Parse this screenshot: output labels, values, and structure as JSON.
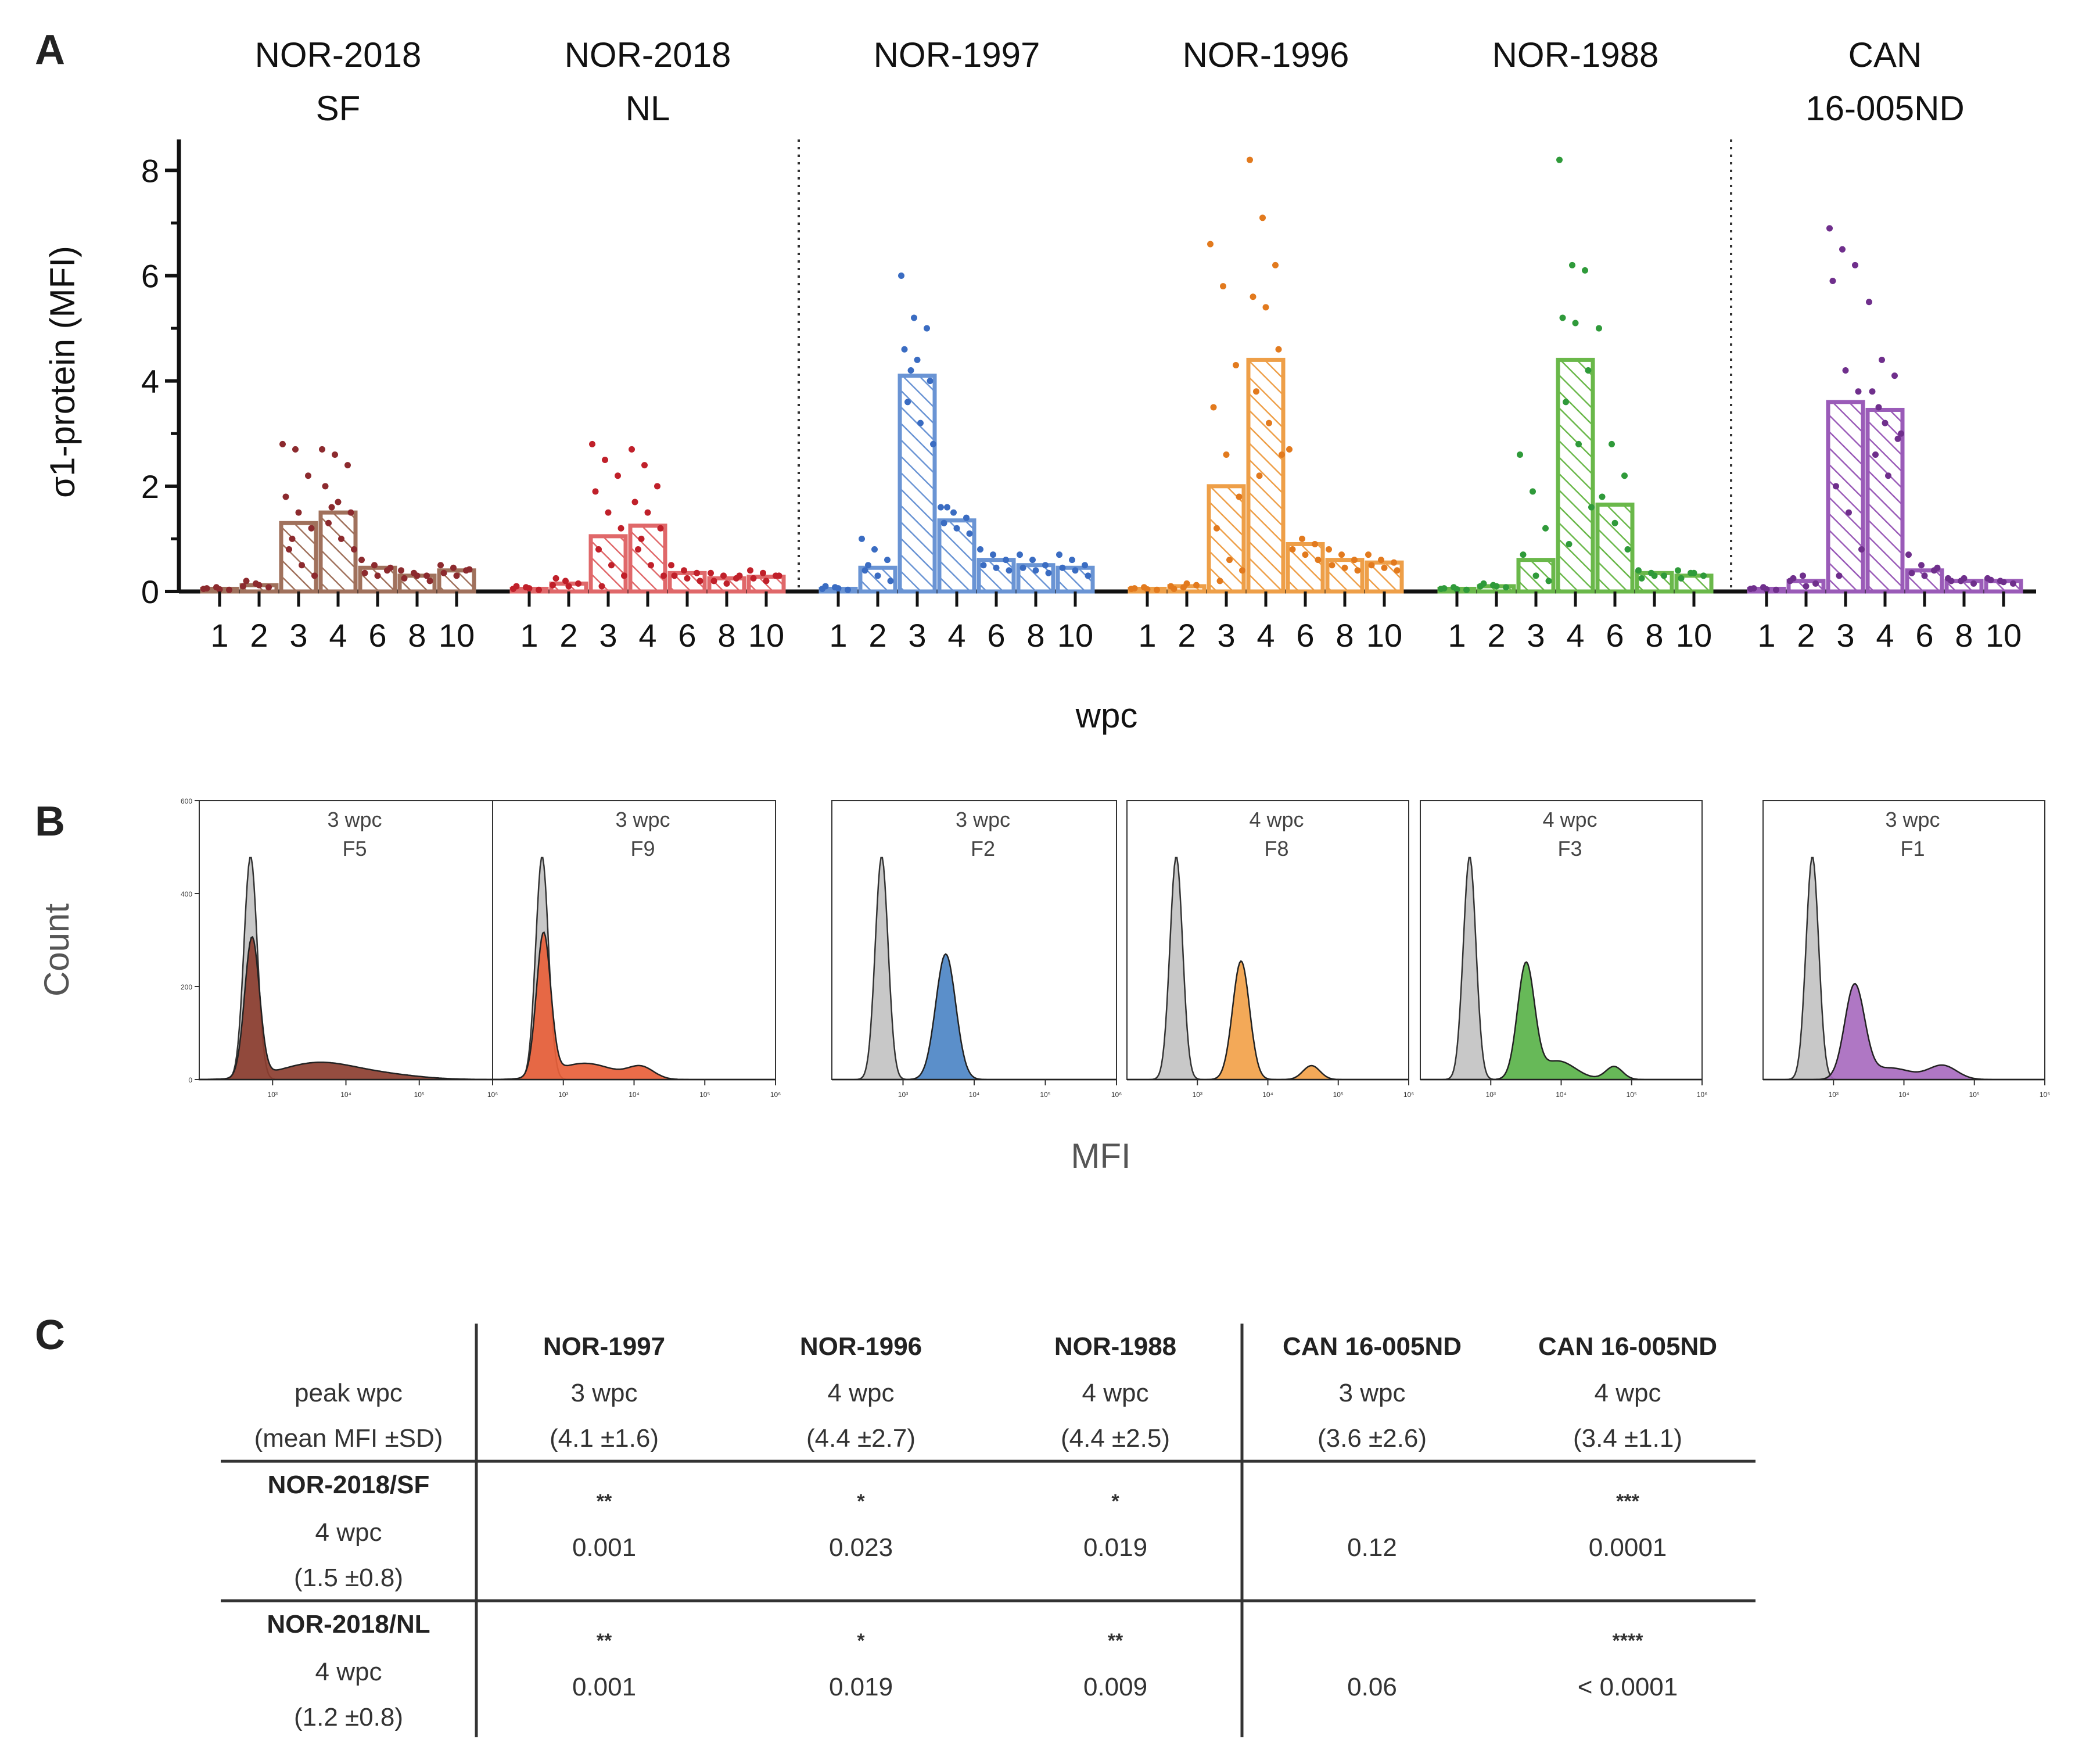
{
  "panels": {
    "a": "A",
    "b": "B",
    "c": "C"
  },
  "chart_data": [
    {
      "type": "bar",
      "title": "",
      "ylabel": "σ1-protein (MFI)",
      "xlabel": "wpc",
      "ylim": [
        0,
        8.5
      ],
      "yticks": [
        "0",
        "2",
        "4",
        "6",
        "8"
      ],
      "categories": [
        "1",
        "2",
        "3",
        "4",
        "6",
        "8",
        "10"
      ],
      "series": [
        {
          "name": "NOR-2018 SF",
          "title_lines": [
            "NOR-2018",
            "SF"
          ],
          "color": "#a0715c",
          "dot_color": "#8c2a2e",
          "values": [
            0.05,
            0.12,
            1.3,
            1.5,
            0.45,
            0.3,
            0.4
          ],
          "points": [
            [
              0.05,
              0.08,
              0.03,
              0.06,
              0.04
            ],
            [
              0.1,
              0.15,
              0.08,
              0.2,
              0.12
            ],
            [
              2.8,
              2.7,
              2.2,
              1.8,
              1.5,
              1.2,
              0.8,
              0.5,
              0.3,
              1.0
            ],
            [
              2.7,
              2.6,
              2.4,
              2.0,
              1.7,
              1.5,
              1.3,
              1.0,
              0.8,
              1.6
            ],
            [
              0.6,
              0.5,
              0.4,
              0.35,
              0.3,
              0.45
            ],
            [
              0.4,
              0.35,
              0.3,
              0.25,
              0.3,
              0.2
            ],
            [
              0.5,
              0.45,
              0.4,
              0.35,
              0.3,
              0.42
            ]
          ]
        },
        {
          "name": "NOR-2018 NL",
          "title_lines": [
            "NOR-2018",
            "NL"
          ],
          "color": "#e0686a",
          "dot_color": "#c0202a",
          "values": [
            0.05,
            0.15,
            1.05,
            1.25,
            0.35,
            0.25,
            0.28
          ],
          "points": [
            [
              0.05,
              0.08,
              0.03,
              0.1,
              0.06
            ],
            [
              0.12,
              0.2,
              0.15,
              0.25,
              0.1
            ],
            [
              2.8,
              2.5,
              2.2,
              1.9,
              1.5,
              1.2,
              0.8,
              0.5,
              0.3,
              0.1
            ],
            [
              2.7,
              2.4,
              2.0,
              1.7,
              1.5,
              1.2,
              0.8,
              0.5,
              0.3,
              1.0
            ],
            [
              0.5,
              0.4,
              0.35,
              0.3,
              0.25,
              0.2
            ],
            [
              0.35,
              0.3,
              0.25,
              0.2,
              0.15,
              0.3
            ],
            [
              0.4,
              0.35,
              0.3,
              0.25,
              0.2,
              0.3
            ]
          ]
        },
        {
          "name": "NOR-1997",
          "title_lines": [
            "NOR-1997"
          ],
          "color": "#6a94d4",
          "dot_color": "#3a6cc2",
          "values": [
            0.05,
            0.45,
            4.1,
            1.35,
            0.6,
            0.5,
            0.45
          ],
          "points": [
            [
              0.05,
              0.08,
              0.03,
              0.1,
              0.06
            ],
            [
              1.0,
              0.8,
              0.6,
              0.4,
              0.3,
              0.2,
              0.5
            ],
            [
              6.0,
              5.2,
              5.0,
              4.6,
              4.4,
              4.0,
              3.6,
              3.2,
              2.8,
              4.2
            ],
            [
              1.6,
              1.5,
              1.4,
              1.3,
              1.2,
              1.1,
              1.6
            ],
            [
              0.8,
              0.7,
              0.6,
              0.5,
              0.45,
              0.4
            ],
            [
              0.7,
              0.6,
              0.5,
              0.45,
              0.4,
              0.35
            ],
            [
              0.7,
              0.6,
              0.5,
              0.45,
              0.4,
              0.3
            ]
          ]
        },
        {
          "name": "NOR-1996",
          "title_lines": [
            "NOR-1996"
          ],
          "color": "#ee9f48",
          "dot_color": "#e27a1e",
          "values": [
            0.05,
            0.1,
            2.0,
            4.4,
            0.9,
            0.6,
            0.55
          ],
          "points": [
            [
              0.05,
              0.08,
              0.03,
              0.06,
              0.04
            ],
            [
              0.1,
              0.08,
              0.12,
              0.05,
              0.15
            ],
            [
              6.6,
              5.8,
              4.3,
              3.5,
              2.6,
              1.8,
              1.2,
              0.6,
              0.4,
              0.2
            ],
            [
              8.2,
              7.1,
              6.2,
              5.6,
              5.4,
              4.6,
              3.8,
              3.2,
              2.6,
              2.2
            ],
            [
              2.7,
              1.0,
              0.9,
              0.8,
              0.7,
              0.6
            ],
            [
              0.8,
              0.7,
              0.6,
              0.5,
              0.45,
              0.4
            ],
            [
              0.7,
              0.6,
              0.55,
              0.5,
              0.45,
              0.4
            ]
          ]
        },
        {
          "name": "NOR-1988",
          "title_lines": [
            "NOR-1988"
          ],
          "color": "#6ab84a",
          "dot_color": "#2f9a3a",
          "values": [
            0.05,
            0.1,
            0.6,
            4.4,
            1.65,
            0.35,
            0.3
          ],
          "points": [
            [
              0.05,
              0.08,
              0.03,
              0.06,
              0.04
            ],
            [
              0.1,
              0.12,
              0.08,
              0.15,
              0.1
            ],
            [
              2.6,
              1.9,
              1.2,
              0.7,
              0.3,
              0.2
            ],
            [
              8.2,
              6.2,
              6.1,
              5.2,
              5.1,
              4.2,
              3.6,
              2.8,
              1.6,
              0.9
            ],
            [
              5.0,
              2.8,
              2.2,
              1.8,
              1.3,
              0.8
            ],
            [
              0.4,
              0.35,
              0.3,
              0.25,
              0.3
            ],
            [
              0.4,
              0.35,
              0.3,
              0.25,
              0.35
            ]
          ]
        },
        {
          "name": "CAN 16-005ND",
          "title_lines": [
            "CAN",
            "16-005ND"
          ],
          "color": "#9a5bb8",
          "dot_color": "#6f2f8c",
          "values": [
            0.05,
            0.2,
            3.6,
            3.45,
            0.4,
            0.2,
            0.2
          ],
          "points": [
            [
              0.05,
              0.08,
              0.03,
              0.06,
              0.04
            ],
            [
              0.2,
              0.3,
              0.15,
              0.25,
              0.1
            ],
            [
              6.9,
              6.5,
              6.2,
              5.9,
              4.2,
              3.8,
              2.0,
              1.5,
              0.8,
              0.3
            ],
            [
              5.5,
              4.4,
              4.1,
              3.8,
              3.2,
              2.9,
              2.6,
              2.2,
              3.0,
              3.5
            ],
            [
              0.7,
              0.5,
              0.4,
              0.35,
              0.3,
              0.45
            ],
            [
              0.25,
              0.2,
              0.15,
              0.2,
              0.25
            ],
            [
              0.25,
              0.2,
              0.15,
              0.22,
              0.18
            ]
          ]
        }
      ]
    },
    {
      "type": "histogram",
      "ylabel": "Count",
      "xlabel": "MFI",
      "ylim": [
        0,
        600
      ],
      "xscale": "log",
      "xlim_log10": [
        2,
        6
      ],
      "yticks": [
        "0",
        "200",
        "400",
        "600"
      ],
      "xticks": [
        "10³",
        "10⁴",
        "10⁵",
        "10⁶"
      ],
      "control_color": "#c8c8c8",
      "control_peak": {
        "log10_mfi": 2.7,
        "count": 480,
        "width": 0.09
      },
      "samples": [
        {
          "label_wpc": "3 wpc",
          "label_fish": "F5",
          "color": "#8c3e30",
          "peaks": [
            {
              "log10_mfi": 2.72,
              "count": 300,
              "width": 0.1
            },
            {
              "log10_mfi": 3.6,
              "count": 35,
              "width": 0.5
            },
            {
              "log10_mfi": 4.5,
              "count": 10,
              "width": 0.5
            }
          ]
        },
        {
          "label_wpc": "3 wpc",
          "label_fish": "F9",
          "color": "#e85f3a",
          "peaks": [
            {
              "log10_mfi": 2.72,
              "count": 305,
              "width": 0.1
            },
            {
              "log10_mfi": 3.3,
              "count": 35,
              "width": 0.4
            },
            {
              "log10_mfi": 4.1,
              "count": 25,
              "width": 0.18
            }
          ]
        },
        {
          "label_wpc": "3 wpc",
          "label_fish": "F2",
          "color": "#4d86c6",
          "peaks": [
            {
              "log10_mfi": 3.6,
              "count": 270,
              "width": 0.14
            }
          ]
        },
        {
          "label_wpc": "4 wpc",
          "label_fish": "F8",
          "color": "#f2a24a",
          "peaks": [
            {
              "log10_mfi": 3.62,
              "count": 255,
              "width": 0.12
            },
            {
              "log10_mfi": 4.62,
              "count": 30,
              "width": 0.12
            }
          ]
        },
        {
          "label_wpc": "4 wpc",
          "label_fish": "F3",
          "color": "#5ab34a",
          "peaks": [
            {
              "log10_mfi": 3.5,
              "count": 245,
              "width": 0.12
            },
            {
              "log10_mfi": 3.95,
              "count": 40,
              "width": 0.25
            },
            {
              "log10_mfi": 4.75,
              "count": 28,
              "width": 0.12
            }
          ]
        },
        {
          "label_wpc": "3 wpc",
          "label_fish": "F1",
          "color": "#a86bbf",
          "peaks": [
            {
              "log10_mfi": 3.3,
              "count": 200,
              "width": 0.14
            },
            {
              "log10_mfi": 3.8,
              "count": 25,
              "width": 0.3
            },
            {
              "log10_mfi": 4.55,
              "count": 30,
              "width": 0.2
            }
          ]
        }
      ]
    },
    {
      "type": "table",
      "corner": [
        "peak wpc",
        "(mean MFI ±SD)"
      ],
      "columns": [
        {
          "name": "NOR-1997",
          "wpc": "3 wpc",
          "mfi": "(4.1 ±1.6)"
        },
        {
          "name": "NOR-1996",
          "wpc": "4 wpc",
          "mfi": "(4.4 ±2.7)"
        },
        {
          "name": "NOR-1988",
          "wpc": "4 wpc",
          "mfi": "(4.4 ±2.5)"
        },
        {
          "name": "CAN 16-005ND",
          "wpc": "3 wpc",
          "mfi": "(3.6 ±2.6)"
        },
        {
          "name": "CAN 16-005ND",
          "wpc": "4 wpc",
          "mfi": "(3.4 ±1.1)"
        }
      ],
      "rows": [
        {
          "name": "NOR-2018/SF",
          "wpc": "4 wpc",
          "mfi": "(1.5 ±0.8)",
          "stars": [
            "**",
            "*",
            "*",
            "",
            "***"
          ],
          "pvalues": [
            "0.001",
            "0.023",
            "0.019",
            "0.12",
            "0.0001"
          ]
        },
        {
          "name": "NOR-2018/NL",
          "wpc": "4 wpc",
          "mfi": "(1.2 ±0.8)",
          "stars": [
            "**",
            "*",
            "**",
            "",
            "****"
          ],
          "pvalues": [
            "0.001",
            "0.019",
            "0.009",
            "0.06",
            "< 0.0001"
          ]
        }
      ]
    }
  ]
}
